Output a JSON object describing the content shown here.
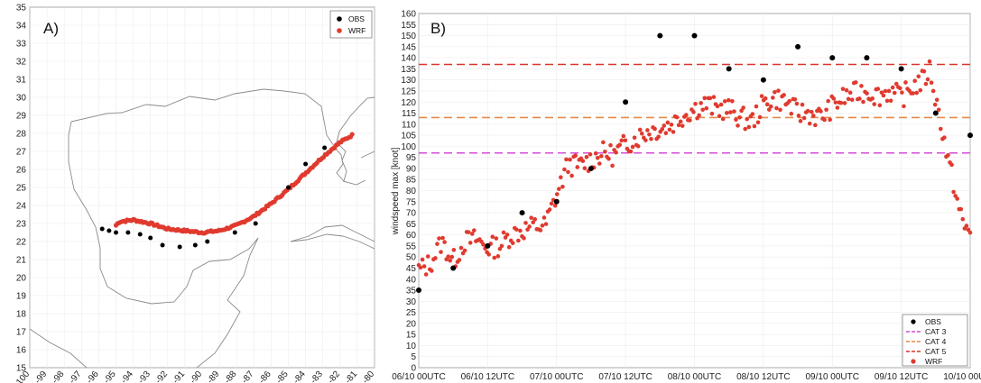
{
  "chart_data": [
    {
      "type": "scatter",
      "panel_label": "A)",
      "xlim": [
        -100,
        -80
      ],
      "ylim": [
        15,
        35
      ],
      "x_ticks": [
        -100,
        -99,
        -98,
        -97,
        -96,
        -95,
        -94,
        -93,
        -92,
        -91,
        -90,
        -89,
        -88,
        -87,
        -86,
        -85,
        -84,
        -83,
        -82,
        -81,
        -80
      ],
      "y_ticks": [
        15,
        16,
        17,
        18,
        19,
        20,
        21,
        22,
        23,
        24,
        25,
        26,
        27,
        28,
        29,
        30,
        31,
        32,
        33,
        34,
        35
      ],
      "legend": [
        {
          "label": "OBS",
          "color": "#000000"
        },
        {
          "label": "WRF",
          "color": "#e03a2f"
        }
      ],
      "legend_position": "top-right",
      "obs_track": [
        [
          -95.8,
          22.7
        ],
        [
          -95.4,
          22.6
        ],
        [
          -95.0,
          22.5
        ],
        [
          -94.3,
          22.5
        ],
        [
          -93.6,
          22.4
        ],
        [
          -93.0,
          22.2
        ],
        [
          -92.3,
          21.8
        ],
        [
          -91.3,
          21.7
        ],
        [
          -90.4,
          21.8
        ],
        [
          -89.7,
          22.0
        ],
        [
          -88.1,
          22.5
        ],
        [
          -86.9,
          23.0
        ],
        [
          -85.0,
          25.0
        ],
        [
          -84.0,
          26.3
        ],
        [
          -82.9,
          27.2
        ]
      ],
      "wrf_track_keypoints": [
        [
          -95.0,
          22.9
        ],
        [
          -94.8,
          23.1
        ],
        [
          -94.0,
          23.2
        ],
        [
          -93.0,
          23.0
        ],
        [
          -92.0,
          22.7
        ],
        [
          -91.0,
          22.6
        ],
        [
          -90.0,
          22.5
        ],
        [
          -89.0,
          22.6
        ],
        [
          -88.0,
          22.9
        ],
        [
          -87.0,
          23.4
        ],
        [
          -86.0,
          24.1
        ],
        [
          -85.0,
          24.9
        ],
        [
          -84.0,
          25.8
        ],
        [
          -83.0,
          26.7
        ],
        [
          -82.0,
          27.5
        ],
        [
          -81.3,
          27.9
        ]
      ]
    },
    {
      "type": "scatter",
      "panel_label": "B)",
      "ylabel": "windspeed max [knot]",
      "x_tick_labels": [
        "06/10 00UTC",
        "06/10 12UTC",
        "07/10 00UTC",
        "07/10 12UTC",
        "08/10 00UTC",
        "08/10 12UTC",
        "09/10 00UTC",
        "09/10 12UTC",
        "10/10 00UTC"
      ],
      "x_hours_range": [
        0,
        96
      ],
      "ylim": [
        0,
        160
      ],
      "y_ticks": [
        0,
        5,
        10,
        15,
        20,
        25,
        30,
        35,
        40,
        45,
        50,
        55,
        60,
        65,
        70,
        75,
        80,
        85,
        90,
        95,
        100,
        105,
        110,
        115,
        120,
        125,
        130,
        135,
        140,
        145,
        150,
        155,
        160
      ],
      "thresholds": [
        {
          "label": "CAT 3",
          "value": 97,
          "color": "#d44bd8"
        },
        {
          "label": "CAT 4",
          "value": 113,
          "color": "#e68a4a"
        },
        {
          "label": "CAT 5",
          "value": 137,
          "color": "#d9342b"
        }
      ],
      "legend": [
        {
          "label": "OBS",
          "color": "#000000",
          "kind": "dot"
        },
        {
          "label": "CAT 3",
          "color": "#d44bd8",
          "kind": "dash"
        },
        {
          "label": "CAT 4",
          "color": "#e68a4a",
          "kind": "dash"
        },
        {
          "label": "CAT 5",
          "color": "#d9342b",
          "kind": "dash"
        },
        {
          "label": "WRF",
          "color": "#e03a2f",
          "kind": "dot"
        }
      ],
      "legend_position": "bottom-right",
      "obs_points": [
        [
          0,
          35
        ],
        [
          6,
          45
        ],
        [
          12,
          55
        ],
        [
          18,
          70
        ],
        [
          24,
          75
        ],
        [
          30,
          90
        ],
        [
          36,
          120
        ],
        [
          42,
          150
        ],
        [
          48,
          150
        ],
        [
          54,
          135
        ],
        [
          60,
          130
        ],
        [
          66,
          145
        ],
        [
          72,
          140
        ],
        [
          78,
          140
        ],
        [
          84,
          135
        ],
        [
          90,
          115
        ],
        [
          96,
          105
        ]
      ],
      "wrf_keypoints": [
        [
          0,
          44
        ],
        [
          2,
          47
        ],
        [
          4,
          57
        ],
        [
          6,
          48
        ],
        [
          8,
          57
        ],
        [
          10,
          58
        ],
        [
          12,
          54
        ],
        [
          14,
          55
        ],
        [
          16,
          60
        ],
        [
          18,
          62
        ],
        [
          20,
          64
        ],
        [
          22,
          64
        ],
        [
          24,
          78
        ],
        [
          26,
          92
        ],
        [
          28,
          91
        ],
        [
          30,
          94
        ],
        [
          32,
          97
        ],
        [
          34,
          96
        ],
        [
          36,
          101
        ],
        [
          38,
          104
        ],
        [
          40,
          107
        ],
        [
          42,
          108
        ],
        [
          44,
          110
        ],
        [
          46,
          114
        ],
        [
          48,
          117
        ],
        [
          50,
          119
        ],
        [
          52,
          117
        ],
        [
          54,
          117
        ],
        [
          56,
          113
        ],
        [
          58,
          111
        ],
        [
          60,
          119
        ],
        [
          62,
          122
        ],
        [
          64,
          120
        ],
        [
          66,
          115
        ],
        [
          68,
          115
        ],
        [
          70,
          113
        ],
        [
          72,
          118
        ],
        [
          74,
          122
        ],
        [
          76,
          124
        ],
        [
          78,
          125
        ],
        [
          80,
          123
        ],
        [
          82,
          125
        ],
        [
          84,
          122
        ],
        [
          86,
          127
        ],
        [
          88,
          130
        ],
        [
          89,
          135
        ],
        [
          90,
          121
        ],
        [
          91,
          110
        ],
        [
          92,
          95
        ],
        [
          93,
          85
        ],
        [
          94,
          72
        ],
        [
          95,
          63
        ],
        [
          96,
          62
        ]
      ]
    }
  ]
}
